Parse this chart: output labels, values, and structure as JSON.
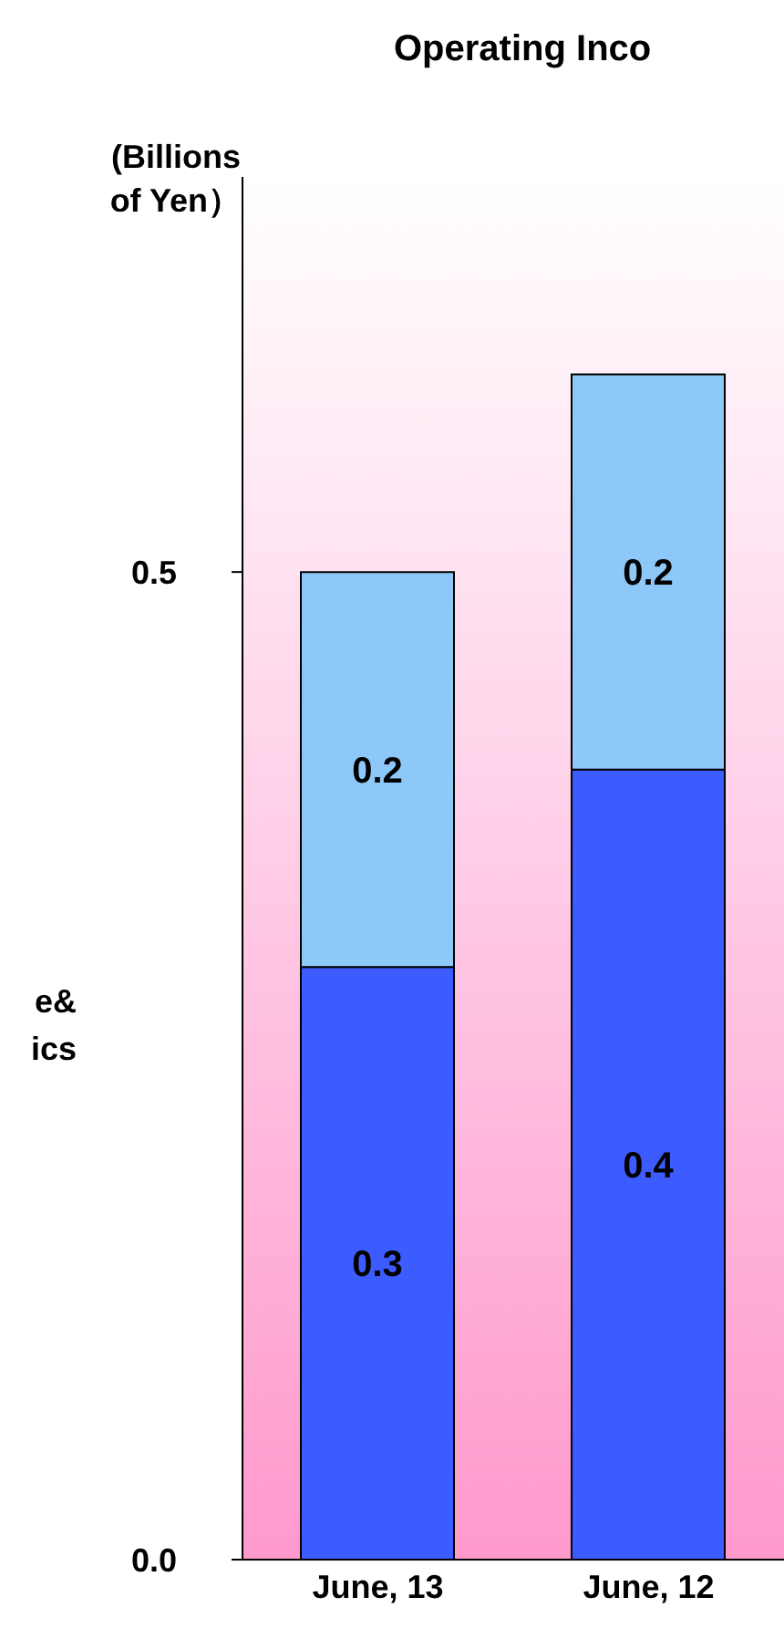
{
  "chart_data": {
    "type": "bar",
    "title": "Operating Inco",
    "ylabel": "(Billions of Yen）",
    "categories": [
      "June, 13",
      "June, 12"
    ],
    "series": [
      {
        "color": "#3d5cff",
        "values": [
          0.3,
          0.4
        ]
      },
      {
        "color": "#8ec8f8",
        "values": [
          0.2,
          0.2
        ]
      }
    ],
    "stacked": true,
    "data_labels": true,
    "ylim": [
      0,
      0.7
    ],
    "yticks": [
      {
        "value": 0,
        "label": "0.0"
      },
      {
        "value": 0.5,
        "label": "0.5"
      }
    ],
    "annotations": [
      "e&",
      "ics"
    ],
    "grid": false
  }
}
